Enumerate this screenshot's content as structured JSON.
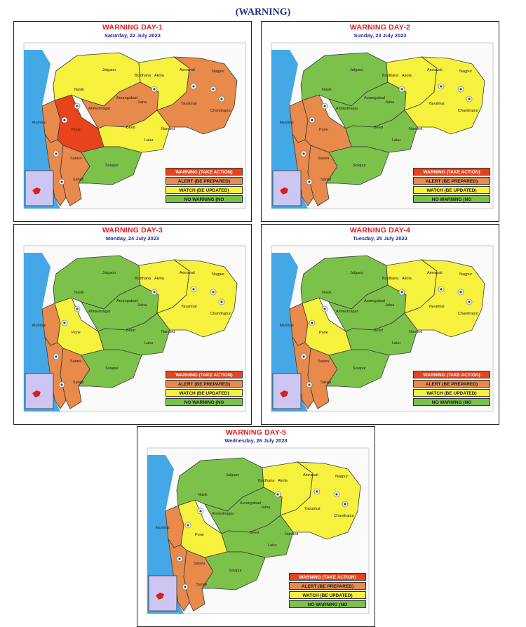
{
  "page_title": "(WARNING)",
  "colors": {
    "warning": "#e8431c",
    "alert": "#e88a4b",
    "watch": "#f6f13c",
    "no_warning": "#7cc14a",
    "sea": "#45a8e6",
    "inset": "#cdc6f2"
  },
  "legend": {
    "warning": "WARNING (TAKE ACTION)",
    "alert": "ALERT (BE PREPARED)",
    "watch": "WATCH (BE UPDATED)",
    "none": "NO WARNING (NO"
  },
  "days": [
    {
      "title": "WARNING DAY-1",
      "date": "Saturday,  22 July 2023",
      "regions": {
        "konkan_north": "alert",
        "konkan_south": "alert",
        "ghats_north": "warning",
        "ghats_south": "alert",
        "north_maha": "watch",
        "marathwada_north": "alert",
        "marathwada_south": "watch",
        "south_interior": "no_warning",
        "vidarbha_west": "watch",
        "vidarbha_east": "alert"
      }
    },
    {
      "title": "WARNING DAY-2",
      "date": "Sunday,  23 July 2023",
      "regions": {
        "konkan_north": "alert",
        "konkan_south": "alert",
        "ghats_north": "alert",
        "ghats_south": "alert",
        "north_maha": "no_warning",
        "marathwada_north": "no_warning",
        "marathwada_south": "no_warning",
        "south_interior": "no_warning",
        "vidarbha_west": "watch",
        "vidarbha_east": "watch"
      }
    },
    {
      "title": "WARNING DAY-3",
      "date": "Monday,  24 July 2023",
      "regions": {
        "konkan_north": "alert",
        "konkan_south": "alert",
        "ghats_north": "watch",
        "ghats_south": "alert",
        "north_maha": "no_warning",
        "marathwada_north": "no_warning",
        "marathwada_south": "no_warning",
        "south_interior": "no_warning",
        "vidarbha_west": "watch",
        "vidarbha_east": "watch"
      }
    },
    {
      "title": "WARNING DAY-4",
      "date": "Tuesday,  25 July 2023",
      "regions": {
        "konkan_north": "alert",
        "konkan_south": "alert",
        "ghats_north": "watch",
        "ghats_south": "alert",
        "north_maha": "no_warning",
        "marathwada_north": "no_warning",
        "marathwada_south": "no_warning",
        "south_interior": "no_warning",
        "vidarbha_west": "watch",
        "vidarbha_east": "watch"
      }
    },
    {
      "title": "WARNING DAY-5",
      "date": "Wednesday,  26 July 2023",
      "regions": {
        "konkan_north": "alert",
        "konkan_south": "alert",
        "ghats_north": "watch",
        "ghats_south": "alert",
        "north_maha": "no_warning",
        "marathwada_north": "no_warning",
        "marathwada_south": "no_warning",
        "south_interior": "no_warning",
        "vidarbha_west": "watch",
        "vidarbha_east": "watch"
      }
    }
  ],
  "place_labels": [
    "Mumbai",
    "Nasik",
    "Pune",
    "Satara",
    "Sangli",
    "Jalgaon",
    "Ahmednagar",
    "Aurangabad",
    "Jalna",
    "Beed",
    "Latur",
    "Solapur",
    "Nanded",
    "Akola",
    "Amravati",
    "Nagpur",
    "Yavatmal",
    "Buldhana",
    "Chandrapur"
  ]
}
